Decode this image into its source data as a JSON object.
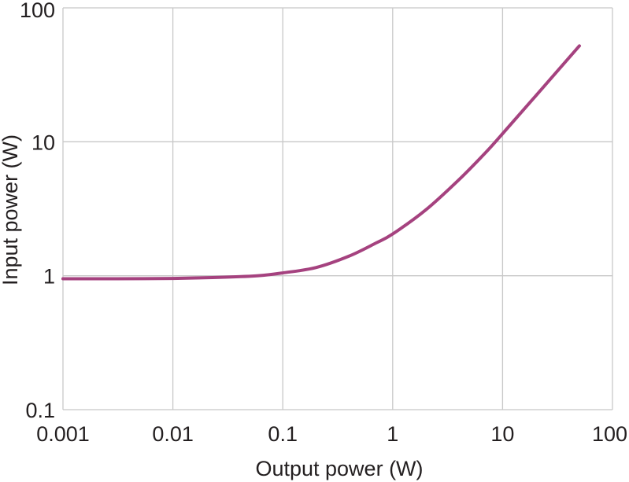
{
  "chart_data": {
    "type": "line",
    "x_scale": "log",
    "y_scale": "log",
    "xlim": [
      0.001,
      100
    ],
    "ylim": [
      0.1,
      100
    ],
    "xlabel": "Output power (W)",
    "ylabel": "Input power (W)",
    "x_ticks": [
      "0.001",
      "0.01",
      "0.1",
      "1",
      "10",
      "100"
    ],
    "y_ticks": [
      "0.1",
      "1",
      "10",
      "100"
    ],
    "grid": true,
    "colors": {
      "series": "#a5427f",
      "grid": "#c8c8c8",
      "text": "#231f20"
    },
    "series": [
      {
        "x": [
          0.001,
          0.003,
          0.01,
          0.03,
          0.06,
          0.1,
          0.2,
          0.4,
          0.7,
          1,
          2,
          4,
          7,
          10,
          20,
          50
        ],
        "y": [
          0.95,
          0.95,
          0.955,
          0.975,
          1.0,
          1.05,
          1.15,
          1.4,
          1.75,
          2.05,
          3.1,
          5.2,
          8.3,
          11.5,
          22,
          52
        ]
      }
    ]
  }
}
